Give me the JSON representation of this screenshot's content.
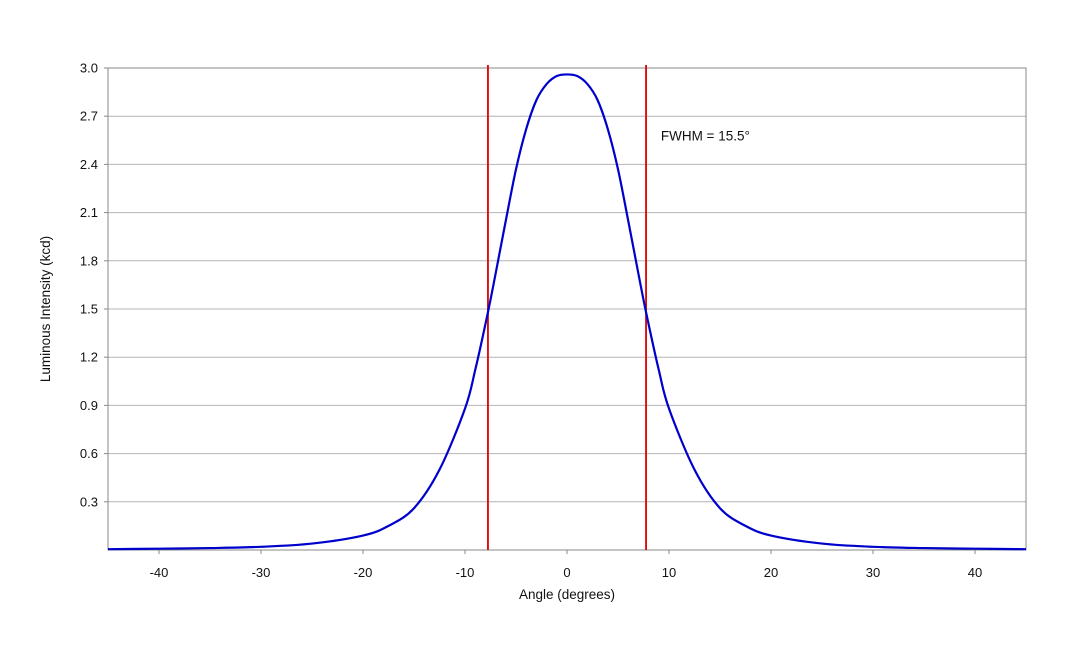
{
  "chart_data": {
    "type": "line",
    "title": "",
    "xlabel": "Angle (degrees)",
    "ylabel": "Luminous Intensity (kcd)",
    "xlim": [
      -45,
      45
    ],
    "ylim": [
      0,
      3.0
    ],
    "x_ticks": [
      -40,
      -30,
      -20,
      -10,
      0,
      10,
      20,
      30,
      40
    ],
    "x_tick_labels": [
      "-40",
      "-30",
      "-20",
      "-10",
      "0",
      "10",
      "20",
      "30",
      "40"
    ],
    "y_ticks": [
      0.3,
      0.6,
      0.9,
      1.2,
      1.5,
      1.8,
      2.1,
      2.4,
      2.7,
      3.0
    ],
    "y_tick_labels": [
      "0.3",
      "0.6",
      "0.9",
      "1.2",
      "1.5",
      "1.8",
      "2.1",
      "2.4",
      "2.7",
      "3.0"
    ],
    "grid": "horizontal",
    "legend": "none",
    "series": [
      {
        "color": "#0000cc",
        "x": [
          -45,
          -40,
          -35,
          -30,
          -25,
          -20,
          -17.5,
          -15,
          -12.5,
          -10,
          -9,
          -7.75,
          -7,
          -6,
          -5,
          -4,
          -3,
          -2,
          -1,
          0,
          1,
          2,
          3,
          4,
          5,
          6,
          7,
          7.75,
          9,
          10,
          12.5,
          15,
          17.5,
          20,
          25,
          30,
          35,
          40,
          45
        ],
        "values": [
          0.005,
          0.008,
          0.012,
          0.02,
          0.04,
          0.09,
          0.15,
          0.26,
          0.5,
          0.88,
          1.12,
          1.48,
          1.72,
          2.05,
          2.37,
          2.62,
          2.8,
          2.9,
          2.95,
          2.96,
          2.95,
          2.9,
          2.8,
          2.62,
          2.37,
          2.05,
          1.72,
          1.48,
          1.12,
          0.88,
          0.5,
          0.26,
          0.15,
          0.09,
          0.04,
          0.02,
          0.012,
          0.008,
          0.005
        ]
      }
    ],
    "vertical_lines": [
      {
        "x": -7.75,
        "color": "#dd0000"
      },
      {
        "x": 7.75,
        "color": "#dd0000"
      }
    ],
    "annotations": [
      {
        "text": "FWHM = 15.5°",
        "x": 9.2,
        "y": 2.55
      }
    ],
    "colors": {
      "curve": "#0000cc",
      "fwhm_lines": "#dd0000",
      "grid": "#b4b4b4",
      "frame": "#888888"
    }
  }
}
